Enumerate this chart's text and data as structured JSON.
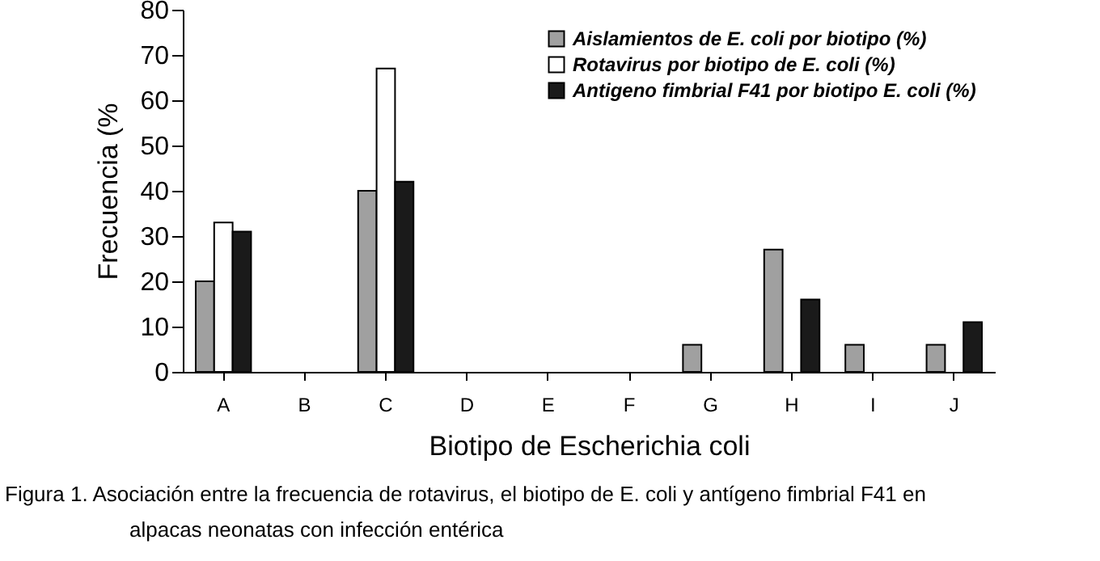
{
  "chart_data": {
    "type": "bar",
    "ylabel": "Frecuencia (%",
    "xlabel": "Biotipo de Escherichia coli",
    "categories": [
      "A",
      "B",
      "C",
      "D",
      "E",
      "F",
      "G",
      "H",
      "I",
      "J"
    ],
    "series": [
      {
        "name": "Aislamientos de E. coli por biotipo (%)",
        "color": "#a0a0a0",
        "values": [
          20,
          null,
          40,
          null,
          null,
          null,
          6,
          27,
          6,
          6
        ]
      },
      {
        "name": "Rotavirus por biotipo de E. coli (%)",
        "color": "#ffffff",
        "values": [
          33,
          null,
          67,
          null,
          null,
          null,
          null,
          null,
          null,
          null
        ]
      },
      {
        "name": "Antigeno fimbrial F41 por biotipo E. coli (%)",
        "color": "#1a1a1a",
        "values": [
          31,
          null,
          42,
          null,
          null,
          null,
          null,
          16,
          null,
          11
        ]
      }
    ],
    "ylim": [
      0,
      80
    ],
    "yticks": [
      0,
      10,
      20,
      30,
      40,
      50,
      60,
      70,
      80
    ],
    "grid": false,
    "legend": "top right",
    "annotations": [
      "Figura 1.   Asociación entre la frecuencia de rotavirus, el biotipo de E. coli y antígeno fimbrial F41 en",
      "alpacas neonatas con infección entérica"
    ]
  }
}
